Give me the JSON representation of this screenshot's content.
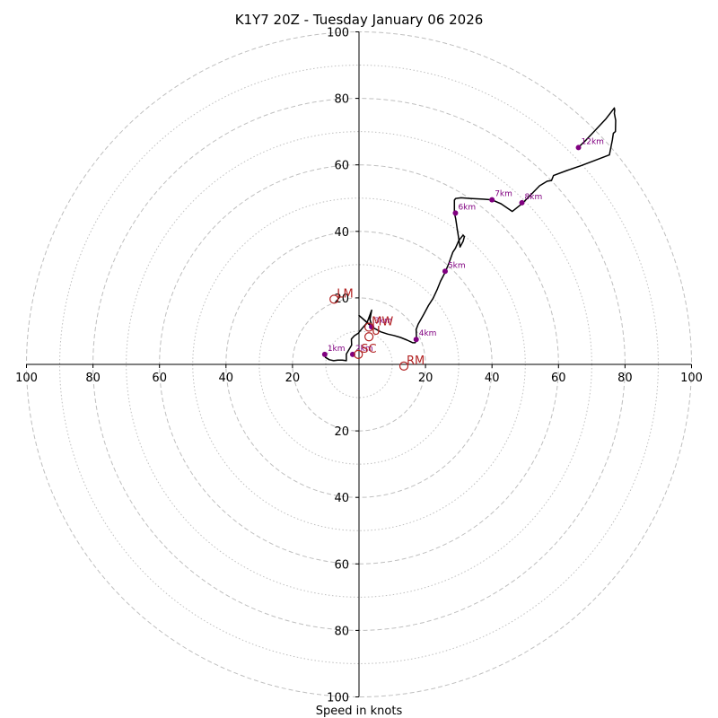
{
  "chart_data": {
    "type": "line",
    "title": "K1Y7 20Z - Tuesday January 06 2026",
    "xlabel": "Speed in knots",
    "ylabel": "",
    "xlim": [
      -100,
      100
    ],
    "ylim": [
      -100,
      100
    ],
    "ring_major": [
      20,
      40,
      60,
      80,
      100
    ],
    "ring_minor": [
      10,
      30,
      50,
      70,
      90
    ],
    "x_ticks": [
      {
        "v": -100,
        "label": "100"
      },
      {
        "v": -80,
        "label": "80"
      },
      {
        "v": -60,
        "label": "60"
      },
      {
        "v": -40,
        "label": "40"
      },
      {
        "v": -20,
        "label": "20"
      },
      {
        "v": 20,
        "label": "20"
      },
      {
        "v": 40,
        "label": "40"
      },
      {
        "v": 60,
        "label": "60"
      },
      {
        "v": 80,
        "label": "80"
      },
      {
        "v": 100,
        "label": "100"
      }
    ],
    "y_ticks": [
      {
        "v": 100,
        "label": "100"
      },
      {
        "v": 80,
        "label": "80"
      },
      {
        "v": 60,
        "label": "60"
      },
      {
        "v": 40,
        "label": "40"
      },
      {
        "v": 20,
        "label": "20"
      },
      {
        "v": -20,
        "label": "20"
      },
      {
        "v": -40,
        "label": "40"
      },
      {
        "v": -60,
        "label": "60"
      },
      {
        "v": -80,
        "label": "80"
      },
      {
        "v": -100,
        "label": "100"
      }
    ],
    "hodograph": {
      "u": [
        -10.3,
        -10.1,
        -8.9,
        -7.6,
        -6.4,
        -5.0,
        -3.8,
        -3.8,
        -2.2,
        -2.3,
        -1.4,
        -0.2,
        1.1,
        2.4,
        3.8,
        3.3,
        4.0,
        0.0,
        3.8,
        6.5,
        8.7,
        10.5,
        12.5,
        14.5,
        16.2,
        16.9,
        17.3,
        17.2,
        17.8,
        19.5,
        20.9,
        22.3,
        23.6,
        24.5,
        25.9,
        27.1,
        28.2,
        29.0,
        30.0,
        31.3,
        31.7,
        31.3,
        30.4,
        29.5,
        29.1,
        28.7,
        28.7,
        29.0,
        29.1,
        30.7,
        33.4,
        37.3,
        39.9,
        42.7,
        46.1,
        49.1,
        51.7,
        54.3,
        56.6,
        57.9,
        58.5,
        62.5,
        66.6,
        70.8,
        75.3,
        76.2,
        76.5,
        77.1,
        77.2,
        76.8,
        76.9,
        76.8,
        74.3,
        71.3,
        68.3,
        65.9
      ],
      "v": [
        3.0,
        2.1,
        1.4,
        1.1,
        1.3,
        1.3,
        1.1,
        3.1,
        5.8,
        7.6,
        8.6,
        9.4,
        11.0,
        12.5,
        16.3,
        13.5,
        11.3,
        14.7,
        11.3,
        9.8,
        9.1,
        8.7,
        8.1,
        7.3,
        6.5,
        6.5,
        7.6,
        10.5,
        12.1,
        15.1,
        17.7,
        19.9,
        22.7,
        25.0,
        27.7,
        30.6,
        33.7,
        34.9,
        37.2,
        38.9,
        38.4,
        37.0,
        35.3,
        41.0,
        43.7,
        45.6,
        49.4,
        49.8,
        49.9,
        50.1,
        49.9,
        49.7,
        49.5,
        48.3,
        46.0,
        48.4,
        51.0,
        53.7,
        55.1,
        55.3,
        56.8,
        58.3,
        59.7,
        61.3,
        63.0,
        67.5,
        69.5,
        70.0,
        73.4,
        75.5,
        76.4,
        77.1,
        73.9,
        70.7,
        67.5,
        65.2
      ]
    },
    "height_labels": [
      {
        "label": "1km",
        "u": -10.3,
        "v": 3.0
      },
      {
        "label": "2km",
        "u": -1.9,
        "v": 3.0
      },
      {
        "label": "3km",
        "u": 3.8,
        "v": 11.3
      },
      {
        "label": "4km",
        "u": 17.2,
        "v": 7.5
      },
      {
        "label": "5km",
        "u": 25.9,
        "v": 28.0
      },
      {
        "label": "6km",
        "u": 29.0,
        "v": 45.5
      },
      {
        "label": "7km",
        "u": 40.0,
        "v": 49.5
      },
      {
        "label": "8km",
        "u": 49.0,
        "v": 48.6
      },
      {
        "label": "12km",
        "u": 66.0,
        "v": 65.2
      }
    ],
    "motion_markers": [
      {
        "label": "LM",
        "u": -7.5,
        "v": 19.6
      },
      {
        "label": "MW",
        "u": 3.0,
        "v": 11.2
      },
      {
        "label": "U",
        "u": 3.0,
        "v": 8.3
      },
      {
        "label": "SC",
        "u": -0.2,
        "v": 3.0
      },
      {
        "label": "RM",
        "u": 13.5,
        "v": -0.5
      }
    ],
    "colors": {
      "trace": "#000000",
      "points": "#800080",
      "markers": "#b22222",
      "grid": "#bfbfbf"
    }
  }
}
